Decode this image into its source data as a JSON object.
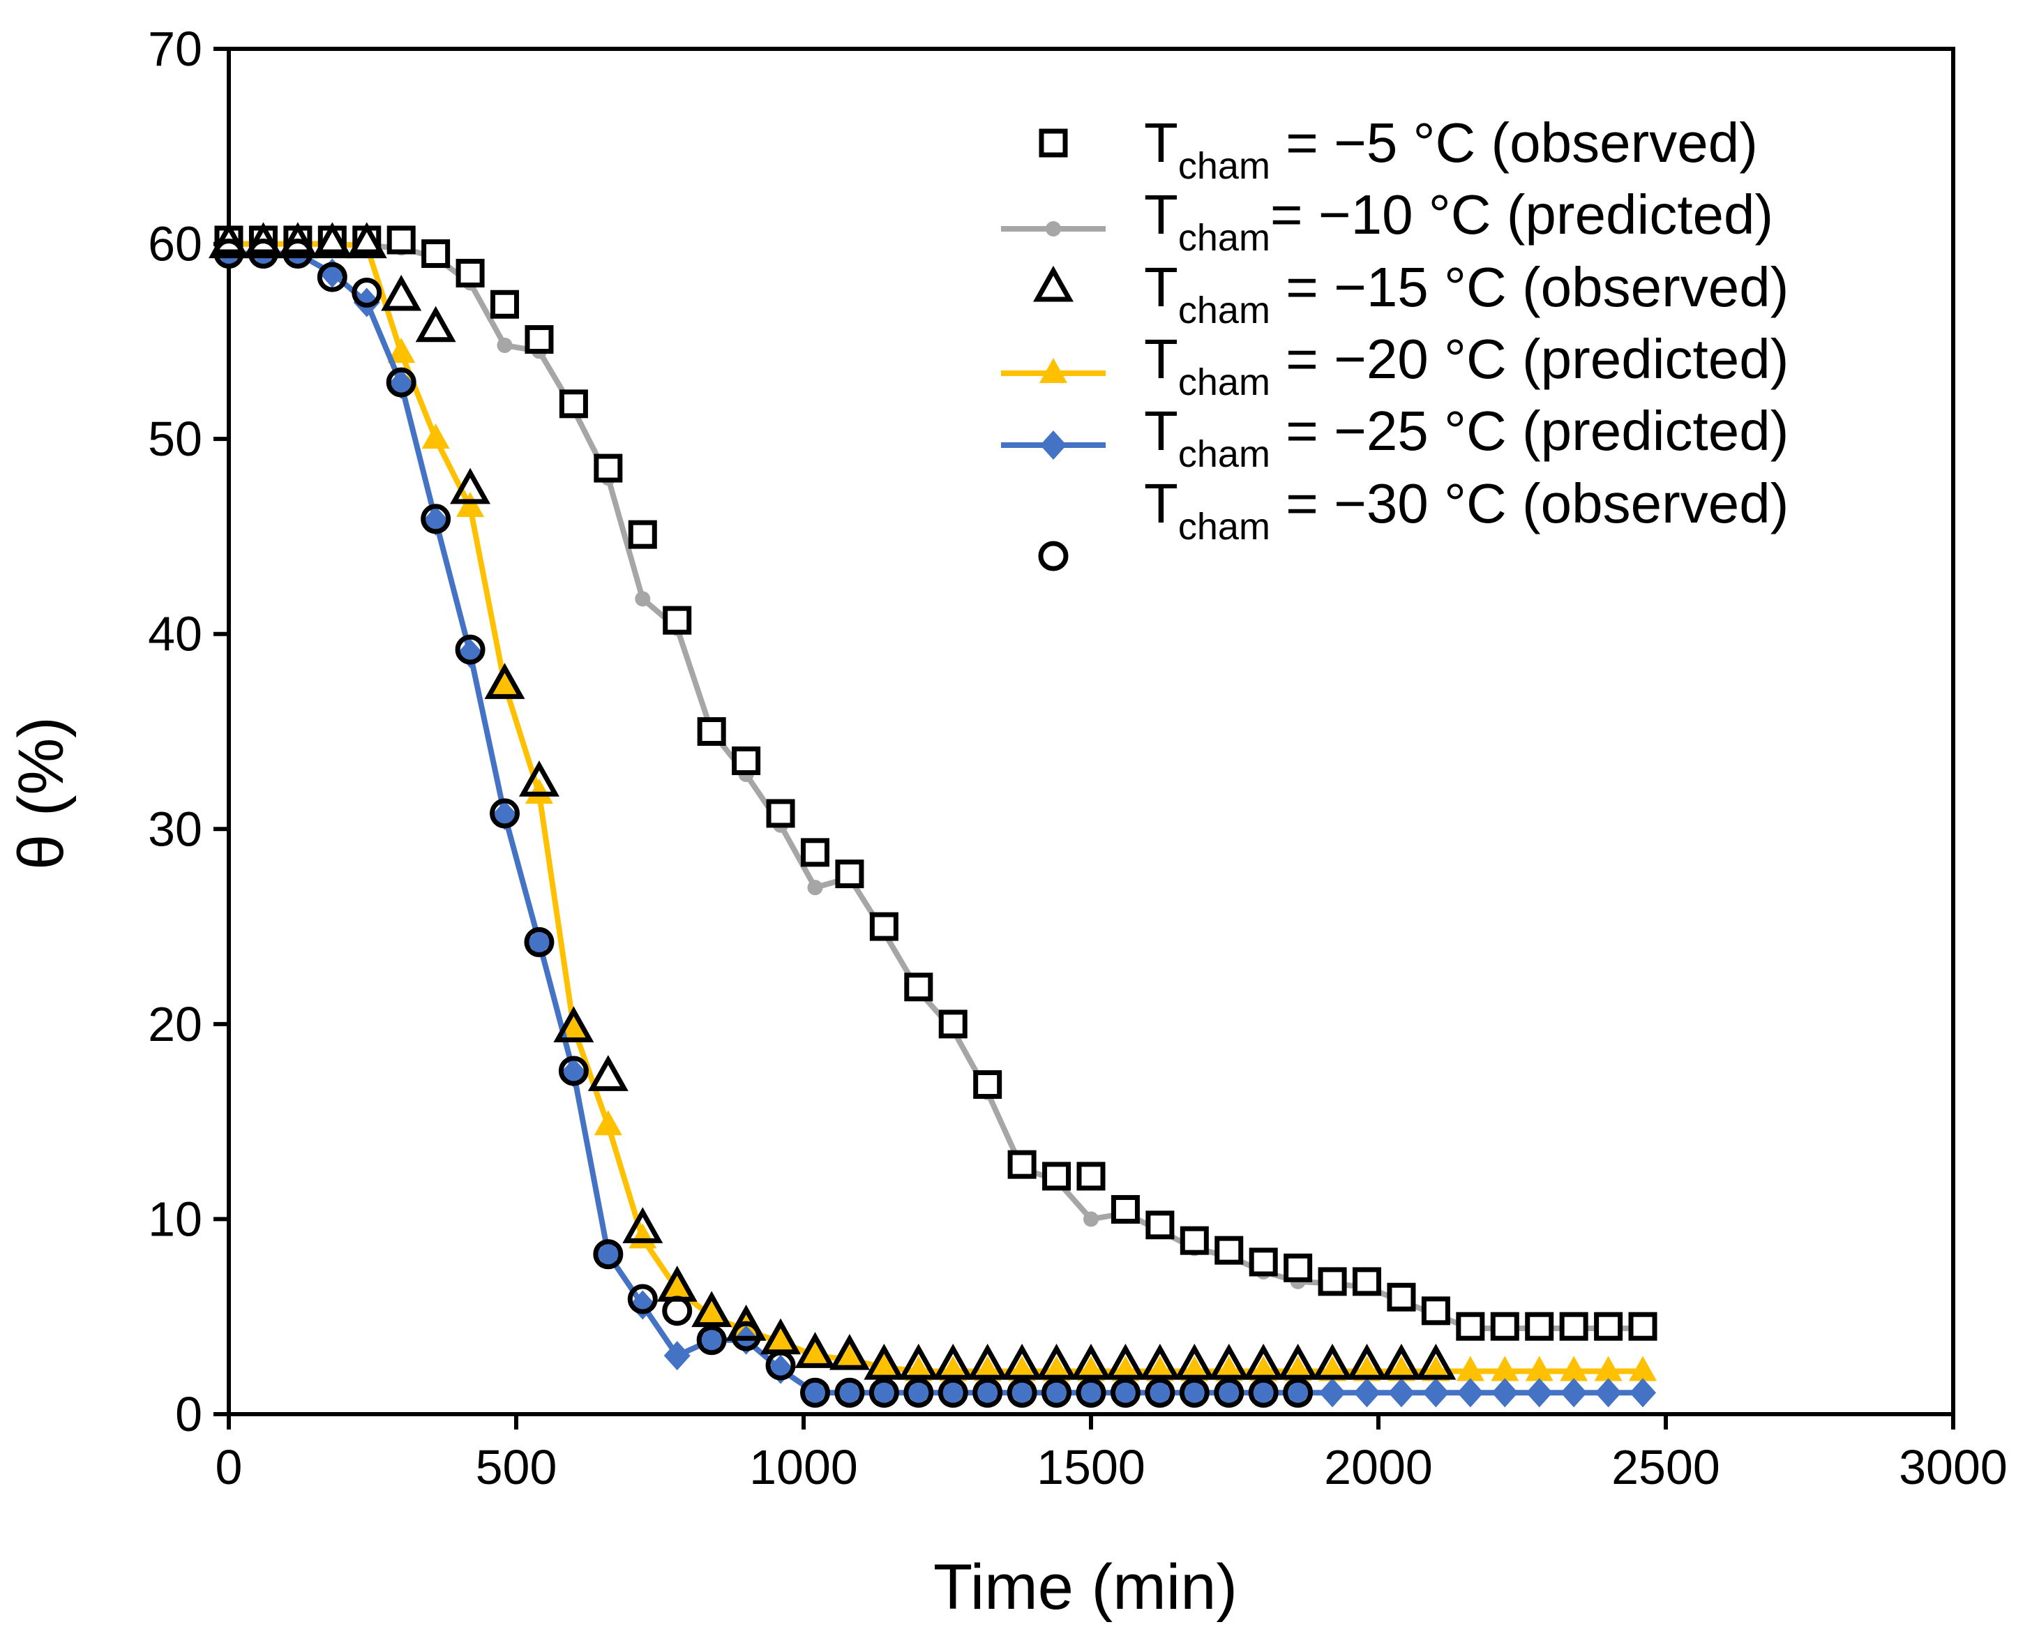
{
  "chart_data": {
    "type": "scatter",
    "title": "",
    "xlabel": "Time (min)",
    "ylabel": "θ (%)",
    "xlim": [
      0,
      3000
    ],
    "ylim": [
      0,
      70
    ],
    "xticks": [
      "0",
      "500",
      "1000",
      "1500",
      "2000",
      "2500",
      "3000"
    ],
    "yticks": [
      "0",
      "10",
      "20",
      "30",
      "40",
      "50",
      "60",
      "70"
    ],
    "legend_position": "top-right",
    "series": [
      {
        "name": "Tcham = −5 °C (observed)",
        "legend": {
          "T": "T",
          "sub": "cham",
          "rest": " = −5 °C (observed)"
        },
        "style": "open-square",
        "color": "#000000",
        "x": [
          0,
          60,
          120,
          180,
          240,
          300,
          360,
          420,
          480,
          540,
          600,
          660,
          720,
          780,
          840,
          900,
          960,
          1020,
          1080,
          1140,
          1200,
          1260,
          1320,
          1380,
          1440,
          1500,
          1560,
          1620,
          1680,
          1740,
          1800,
          1860,
          1920,
          1980,
          2040,
          2100,
          2160,
          2220,
          2280,
          2340,
          2400,
          2460
        ],
        "y": [
          60.2,
          60.2,
          60.2,
          60.2,
          60.2,
          60.2,
          59.5,
          58.5,
          56.9,
          55.1,
          51.8,
          48.5,
          45.1,
          40.7,
          35.0,
          33.5,
          30.8,
          28.8,
          27.7,
          25.0,
          21.9,
          20.0,
          16.9,
          12.8,
          12.2,
          12.2,
          10.5,
          9.7,
          8.9,
          8.4,
          7.8,
          7.5,
          6.8,
          6.8,
          6.0,
          5.3,
          4.5,
          4.5,
          4.5,
          4.5,
          4.5,
          4.5
        ]
      },
      {
        "name": "Tcham= −10 °C (predicted)",
        "legend": {
          "T": "T",
          "sub": "cham",
          "rest": "= −10 °C (predicted)"
        },
        "style": "line-dot",
        "color": "#A6A6A6",
        "x": [
          0,
          60,
          120,
          180,
          240,
          300,
          360,
          420,
          480,
          540,
          600,
          660,
          720,
          780,
          840,
          900,
          960,
          1020,
          1080,
          1140,
          1200,
          1260,
          1320,
          1380,
          1440,
          1500,
          1560,
          1620,
          1680,
          1740,
          1800,
          1860,
          1920,
          1980,
          2040,
          2100,
          2160,
          2220,
          2280,
          2340,
          2400,
          2460
        ],
        "y": [
          60.0,
          60.0,
          60.0,
          60.0,
          59.9,
          59.8,
          59.3,
          58.0,
          54.8,
          54.5,
          51.5,
          48.0,
          41.8,
          40.3,
          35.0,
          32.8,
          30.2,
          27.0,
          27.5,
          24.7,
          21.7,
          19.7,
          16.5,
          12.6,
          12.0,
          10.0,
          10.3,
          9.4,
          8.5,
          8.1,
          7.3,
          6.8,
          6.7,
          6.5,
          5.8,
          5.1,
          4.4,
          4.4,
          4.4,
          4.4,
          4.4,
          4.4
        ]
      },
      {
        "name": "Tcham = −15 °C (observed)",
        "legend": {
          "T": "T",
          "sub": "cham",
          "rest": " = −15 °C (observed)"
        },
        "style": "open-triangle",
        "color": "#000000",
        "x": [
          0,
          60,
          120,
          180,
          240,
          300,
          360,
          420,
          480,
          540,
          600,
          660,
          720,
          780,
          840,
          900,
          960,
          1020,
          1080,
          1140,
          1200,
          1260,
          1320,
          1380,
          1440,
          1500,
          1560,
          1620,
          1680,
          1740,
          1800,
          1860,
          1920,
          1980,
          2040,
          2100
        ],
        "y": [
          60.0,
          60.0,
          60.0,
          60.0,
          60.0,
          57.3,
          55.7,
          47.4,
          37.4,
          32.4,
          19.8,
          17.3,
          9.5,
          6.5,
          5.2,
          4.5,
          3.8,
          3.1,
          3.0,
          2.5,
          2.5,
          2.5,
          2.5,
          2.5,
          2.5,
          2.5,
          2.5,
          2.5,
          2.5,
          2.5,
          2.5,
          2.5,
          2.5,
          2.5,
          2.5,
          2.5
        ]
      },
      {
        "name": "Tcham = −20 °C (predicted)",
        "legend": {
          "T": "T",
          "sub": "cham",
          "rest": " = −20 °C (predicted)"
        },
        "style": "line-triangle",
        "color": "#FFC000",
        "x": [
          0,
          60,
          120,
          180,
          240,
          300,
          360,
          420,
          480,
          540,
          600,
          660,
          720,
          780,
          840,
          900,
          960,
          1020,
          1080,
          1140,
          1200,
          1260,
          1320,
          1380,
          1440,
          1500,
          1560,
          1620,
          1680,
          1740,
          1800,
          1860,
          1920,
          1980,
          2040,
          2100,
          2160,
          2220,
          2280,
          2340,
          2400,
          2460
        ],
        "y": [
          60.0,
          60.0,
          60.0,
          60.0,
          59.9,
          54.4,
          50.0,
          46.5,
          37.4,
          31.8,
          19.8,
          14.8,
          9.0,
          6.4,
          5.0,
          4.3,
          3.7,
          3.0,
          2.8,
          2.4,
          2.2,
          2.2,
          2.2,
          2.2,
          2.2,
          2.2,
          2.2,
          2.2,
          2.2,
          2.2,
          2.2,
          2.2,
          2.2,
          2.2,
          2.2,
          2.2,
          2.2,
          2.2,
          2.2,
          2.2,
          2.2,
          2.2
        ]
      },
      {
        "name": "Tcham = −25 °C (predicted)",
        "legend": {
          "T": "T",
          "sub": "cham",
          "rest": " = −25 °C (predicted)"
        },
        "style": "line-diamond",
        "color": "#4472C4",
        "x": [
          0,
          60,
          120,
          180,
          240,
          300,
          360,
          420,
          480,
          540,
          600,
          660,
          720,
          780,
          840,
          900,
          960,
          1020,
          1080,
          1140,
          1200,
          1260,
          1320,
          1380,
          1440,
          1500,
          1560,
          1620,
          1680,
          1740,
          1800,
          1860,
          1920,
          1980,
          2040,
          2100,
          2160,
          2220,
          2280,
          2340,
          2400,
          2460
        ],
        "y": [
          59.5,
          59.5,
          59.5,
          58.5,
          57.0,
          52.8,
          45.8,
          39.0,
          30.7,
          24.2,
          17.5,
          8.2,
          5.6,
          3.0,
          3.8,
          3.8,
          2.3,
          1.1,
          1.1,
          1.1,
          1.1,
          1.1,
          1.1,
          1.1,
          1.1,
          1.1,
          1.1,
          1.1,
          1.1,
          1.1,
          1.1,
          1.1,
          1.1,
          1.1,
          1.1,
          1.1,
          1.1,
          1.1,
          1.1,
          1.1,
          1.1,
          1.1
        ]
      },
      {
        "name": "Tcham = −30 °C (observed)",
        "legend": {
          "T": "T",
          "sub": "cham",
          "rest": " = −30 °C (observed)"
        },
        "style": "open-circle",
        "color": "#000000",
        "x": [
          0,
          60,
          120,
          180,
          240,
          300,
          360,
          420,
          480,
          540,
          600,
          660,
          720,
          780,
          840,
          900,
          960,
          1020,
          1080,
          1140,
          1200,
          1260,
          1320,
          1380,
          1440,
          1500,
          1560,
          1620,
          1680,
          1740,
          1800,
          1860
        ],
        "y": [
          59.5,
          59.5,
          59.5,
          58.3,
          57.5,
          52.9,
          45.9,
          39.2,
          30.8,
          24.2,
          17.6,
          8.2,
          5.9,
          5.3,
          3.8,
          4.0,
          2.5,
          1.1,
          1.1,
          1.1,
          1.1,
          1.1,
          1.1,
          1.1,
          1.1,
          1.1,
          1.1,
          1.1,
          1.1,
          1.1,
          1.1,
          1.1
        ]
      }
    ]
  }
}
